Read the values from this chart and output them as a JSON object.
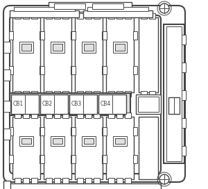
{
  "bg_color": "#ffffff",
  "line_color": "#444444",
  "fill_color": "#ffffff",
  "gray_fill": "#e0e0e0",
  "cb_labels": [
    "CB1",
    "CB2",
    "CB3",
    "CB4"
  ],
  "lw_outer": 1.5,
  "lw_inner": 1.0,
  "lw_thin": 0.7
}
